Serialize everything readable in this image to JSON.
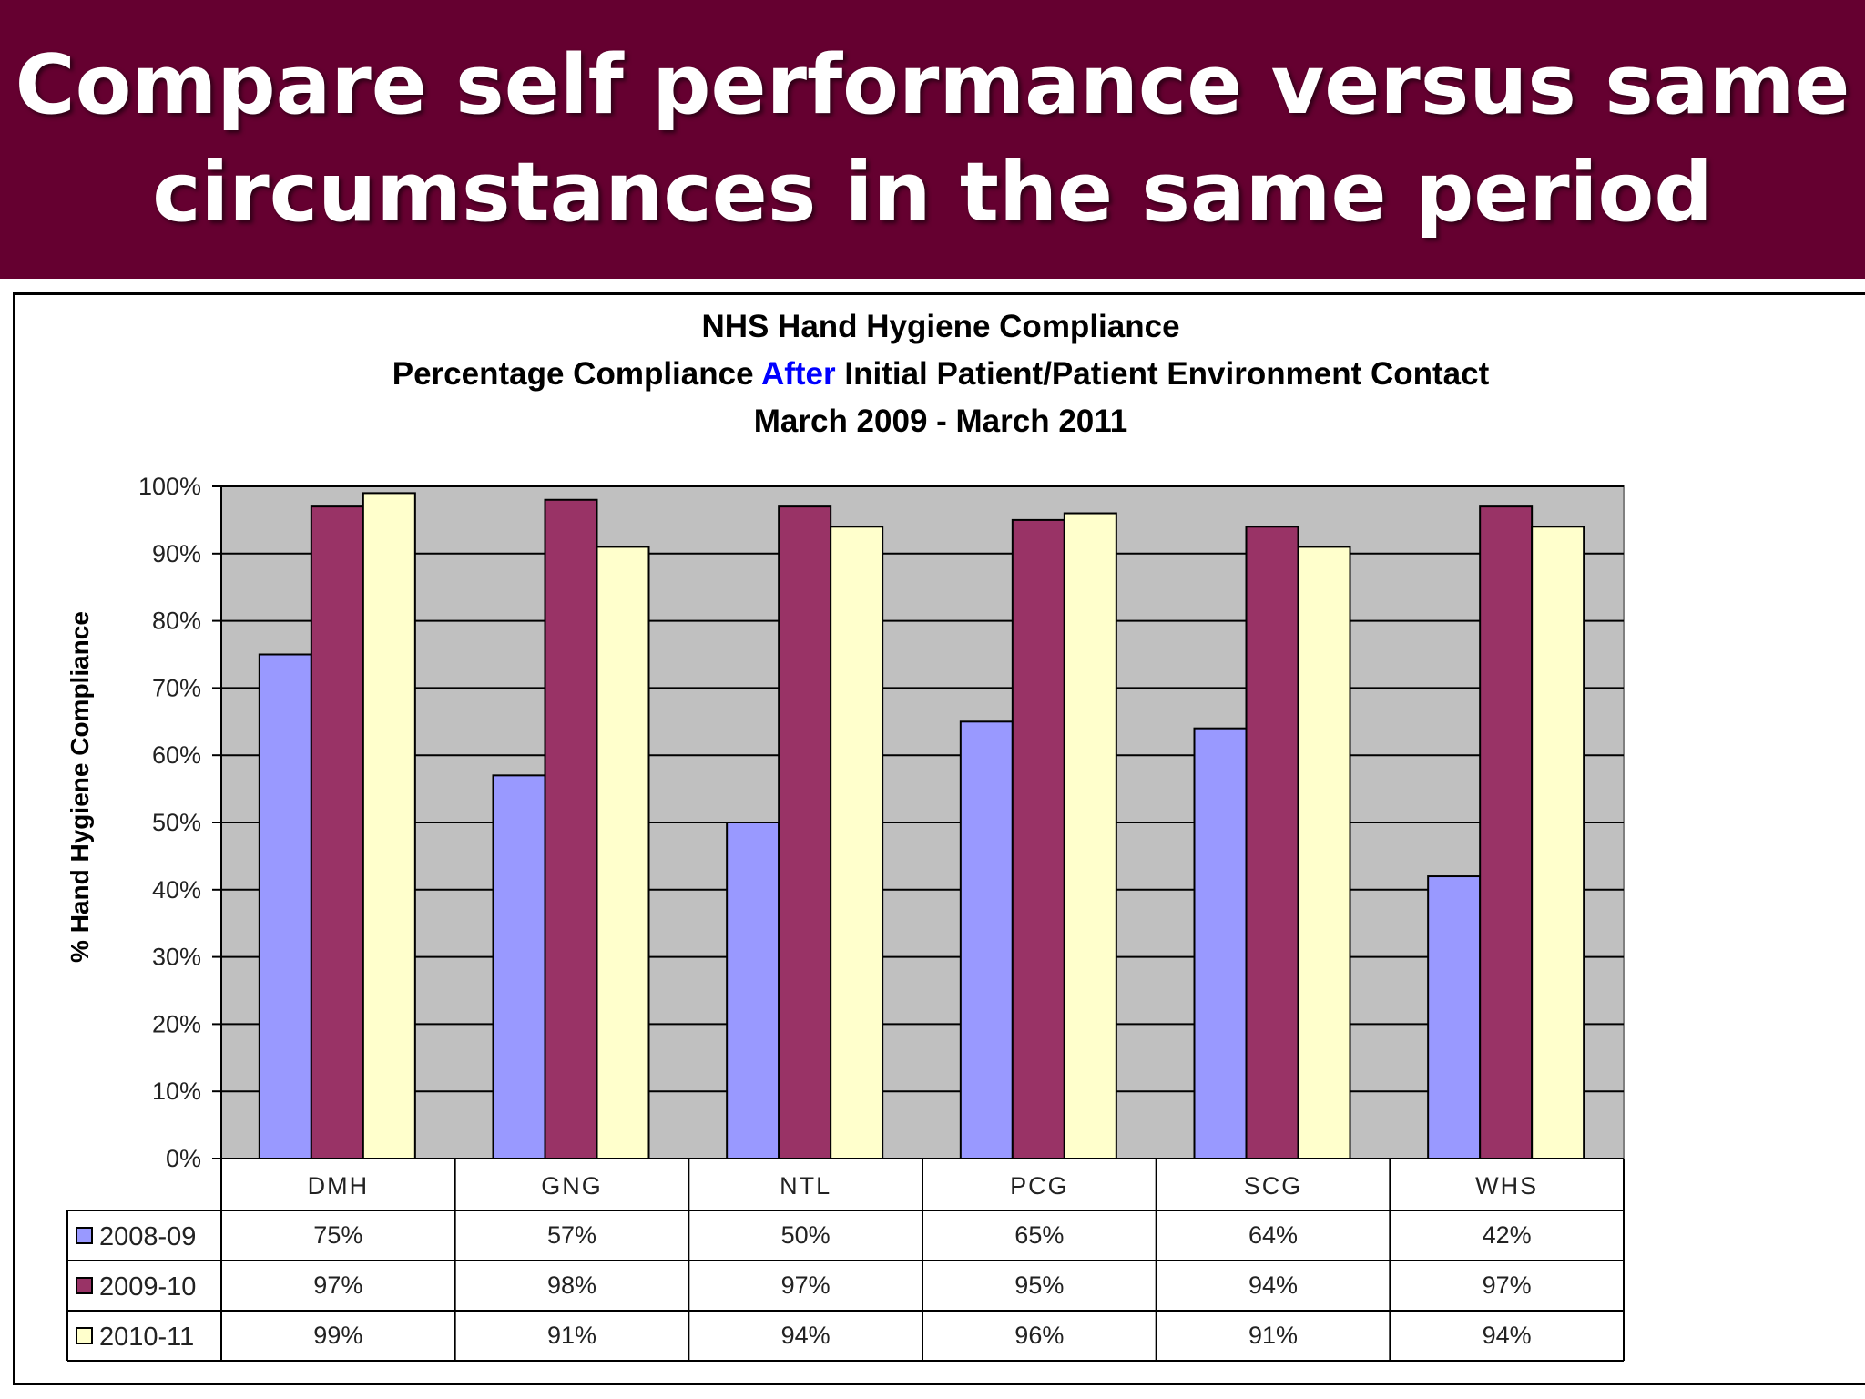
{
  "header": {
    "line1": "Compare self performance versus same",
    "line2": "circumstances in the same period"
  },
  "colors": {
    "header_bg": "#650030",
    "plot_bg": "#C0C0C0",
    "series": [
      "#9999FF",
      "#993366",
      "#FFFFCC"
    ]
  },
  "chart_data": {
    "type": "bar",
    "title": "NHS Hand Hygiene Compliance",
    "subtitle_parts": [
      "Percentage Compliance ",
      "After",
      " Initial Patient/Patient Environment Contact"
    ],
    "subtitle_highlight_color": "#0000FF",
    "date_range": "March 2009 - March 2011",
    "ylabel": "% Hand Hygiene Compliance",
    "xlabel": "",
    "ylim": [
      0,
      100
    ],
    "yticks": [
      "0%",
      "10%",
      "20%",
      "30%",
      "40%",
      "50%",
      "60%",
      "70%",
      "80%",
      "90%",
      "100%"
    ],
    "grid": true,
    "legend": "data-table",
    "categories": [
      "DMH",
      "GNG",
      "NTL",
      "PCG",
      "SCG",
      "WHS"
    ],
    "series": [
      {
        "name": "2008-09",
        "values": [
          75,
          57,
          50,
          65,
          64,
          42
        ],
        "labels": [
          "75%",
          "57%",
          "50%",
          "65%",
          "64%",
          "42%"
        ]
      },
      {
        "name": "2009-10",
        "values": [
          97,
          98,
          97,
          95,
          94,
          97
        ],
        "labels": [
          "97%",
          "98%",
          "97%",
          "95%",
          "94%",
          "97%"
        ]
      },
      {
        "name": "2010-11",
        "values": [
          99,
          91,
          94,
          96,
          91,
          94
        ],
        "labels": [
          "99%",
          "91%",
          "94%",
          "96%",
          "91%",
          "94%"
        ]
      }
    ]
  }
}
